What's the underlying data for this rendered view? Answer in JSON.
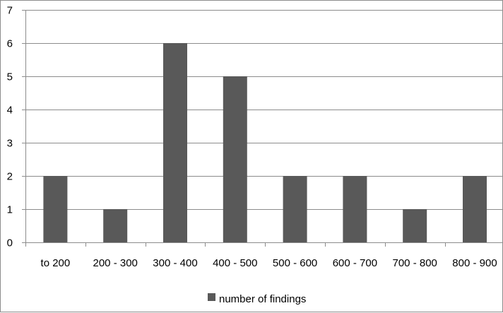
{
  "chart_data": {
    "type": "bar",
    "categories": [
      "to 200",
      "200 - 300",
      "300 - 400",
      "400 - 500",
      "500 - 600",
      "600 - 700",
      "700 - 800",
      "800 - 900"
    ],
    "series": [
      {
        "name": "number of findings",
        "values": [
          2,
          1,
          6,
          5,
          2,
          2,
          1,
          2
        ],
        "color": "#595959"
      }
    ],
    "ylim": [
      0,
      7
    ],
    "yticks": [
      0,
      1,
      2,
      3,
      4,
      5,
      6,
      7
    ],
    "grid": true,
    "legend": "bottom"
  }
}
